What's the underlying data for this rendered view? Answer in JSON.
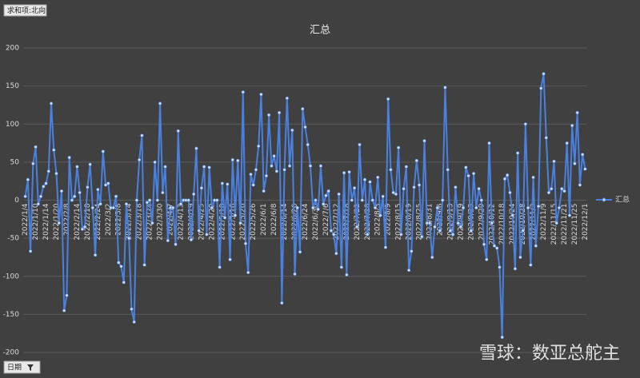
{
  "chart_data": {
    "type": "line",
    "title": "汇总",
    "categories": [
      "2022/1/4",
      null,
      null,
      null,
      "2022/1/10",
      null,
      null,
      null,
      "2022/1/14",
      null,
      null,
      null,
      "2022/1/20",
      null,
      null,
      null,
      "2022/2/8",
      null,
      null,
      null,
      "2022/2/14",
      null,
      null,
      null,
      "2022/2/18",
      null,
      null,
      null,
      "2022/2/24",
      null,
      null,
      null,
      "2022/3/2",
      null,
      null,
      null,
      "2022/3/8",
      null,
      null,
      null,
      "2022/3/14",
      null,
      null,
      null,
      "2022/3/18",
      null,
      null,
      null,
      "2022/3/24",
      null,
      null,
      null,
      "2022/3/30",
      null,
      null,
      null,
      "2022/4/7",
      null,
      null,
      null,
      "2022/4/13",
      null,
      null,
      null,
      "2022/4/19",
      null,
      null,
      null,
      "2022/4/25",
      null,
      null,
      null,
      "2022/4/29",
      null,
      null,
      null,
      "2022/5/10",
      null,
      null,
      null,
      "2022/5/16",
      null,
      null,
      null,
      "2022/5/20",
      null,
      null,
      null,
      "2022/5/26",
      null,
      null,
      null,
      "2022/6/1",
      null,
      null,
      null,
      "2022/6/8",
      null,
      null,
      null,
      "2022/6/14",
      null,
      null,
      null,
      "2022/6/20",
      null,
      null,
      null,
      "2022/6/24",
      null,
      null,
      null,
      "2022/6/30",
      null,
      null,
      null,
      "2022/7/6",
      null,
      null,
      null,
      "2022/7/12",
      null,
      null,
      null,
      "2022/7/18",
      null,
      null,
      null,
      "2022/7/22",
      null,
      null,
      null,
      "2022/7/28",
      null,
      null,
      null,
      "2022/8/3",
      null,
      null,
      null,
      "2022/8/9",
      null,
      null,
      null,
      "2022/8/15",
      null,
      null,
      null,
      "2022/8/19",
      null,
      null,
      null,
      "2022/8/25",
      null,
      null,
      null,
      "2022/8/31",
      null,
      null,
      null,
      "2022/9/6",
      null,
      null,
      null,
      "2022/9/13",
      null,
      null,
      null,
      "2022/9/19",
      null,
      null,
      null,
      "2022/9/23",
      null,
      null,
      null,
      "2022/9/29",
      null,
      null,
      null,
      "2022/10/12",
      null,
      null,
      null,
      "2022/10/18",
      null,
      null,
      null,
      "2022/10/24",
      null,
      null,
      null,
      "2022/10/28",
      null,
      null,
      null,
      "2022/11/3",
      null,
      null,
      null,
      "2022/11/9",
      null,
      null,
      null,
      "2022/11/15",
      null,
      null,
      null,
      "2022/11/21",
      null,
      null,
      null,
      "2022/11/25",
      null,
      null,
      null,
      "2022/12/1"
    ],
    "series": [
      {
        "name": "汇总",
        "color": "#4a80e0",
        "values": [
          5,
          27,
          -67,
          48,
          70,
          -5,
          5,
          18,
          22,
          38,
          127,
          66,
          35,
          -30,
          12,
          -145,
          -125,
          56,
          0,
          5,
          44,
          10,
          -38,
          -35,
          17,
          47,
          -10,
          -72,
          14,
          -5,
          64,
          20,
          22,
          -10,
          -10,
          5,
          -82,
          -87,
          -108,
          -5,
          -50,
          -143,
          -160,
          0,
          53,
          85,
          -85,
          -3,
          0,
          -30,
          50,
          0,
          127,
          10,
          44,
          -53,
          -10,
          -10,
          -58,
          91,
          -5,
          0,
          0,
          0,
          -52,
          8,
          68,
          -40,
          16,
          44,
          -45,
          43,
          -10,
          0,
          0,
          -88,
          22,
          -23,
          21,
          -78,
          53,
          -20,
          52,
          -30,
          142,
          -57,
          -95,
          34,
          20,
          40,
          71,
          139,
          12,
          32,
          112,
          45,
          58,
          38,
          115,
          -135,
          40,
          134,
          45,
          92,
          -97,
          -10,
          -68,
          120,
          96,
          73,
          45,
          -10,
          0,
          -12,
          45,
          -5,
          6,
          12,
          -40,
          -45,
          -70,
          8,
          -88,
          36,
          -98,
          37,
          0,
          16,
          -35,
          73,
          0,
          27,
          -45,
          24,
          0,
          -10,
          30,
          -20,
          5,
          -62,
          133,
          40,
          10,
          8,
          69,
          -45,
          15,
          44,
          -92,
          -67,
          17,
          52,
          20,
          -48,
          78,
          -30,
          -30,
          -75,
          -35,
          -10,
          -40,
          0,
          148,
          40,
          -40,
          -45,
          17,
          -30,
          -35,
          -10,
          43,
          32,
          -40,
          35,
          -10,
          15,
          0,
          -58,
          -78,
          75,
          -30,
          -60,
          -63,
          -88,
          -180,
          28,
          33,
          10,
          -20,
          -90,
          62,
          -75,
          -40,
          100,
          -10,
          -85,
          30,
          -60,
          -8,
          147,
          166,
          82,
          10,
          15,
          51,
          -30,
          -10,
          15,
          12,
          75,
          -20,
          98,
          48,
          115,
          20,
          60,
          41
        ]
      }
    ],
    "ylim": [
      -200,
      200
    ],
    "yticks": [
      -200,
      -150,
      -100,
      -50,
      0,
      50,
      100,
      150,
      200
    ],
    "grid": true,
    "legend": "right"
  },
  "value_field": "求和项:北向",
  "axis_field": "日期",
  "watermark": "雪球：数亚总舵主"
}
